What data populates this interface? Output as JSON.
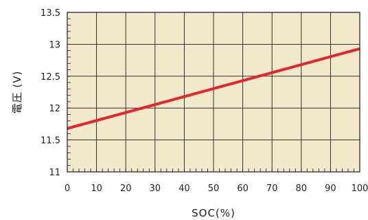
{
  "chart_data": {
    "type": "line",
    "xlabel": "SOC(%)",
    "ylabel": "電圧 (V)",
    "xlim": [
      0,
      100
    ],
    "ylim": [
      11,
      13.5
    ],
    "x_ticks": [
      0,
      10,
      20,
      30,
      40,
      50,
      60,
      70,
      80,
      90,
      100
    ],
    "y_ticks": [
      11,
      11.5,
      12,
      12.5,
      13,
      13.5
    ],
    "x_tick_labels": [
      "0",
      "10",
      "20",
      "30",
      "40",
      "50",
      "60",
      "70",
      "80",
      "90",
      "100"
    ],
    "y_tick_labels": [
      "11",
      "11.5",
      "12",
      "12.5",
      "13",
      "13.5"
    ],
    "grid": true,
    "series": [
      {
        "x": [
          0,
          100
        ],
        "y": [
          11.68,
          12.93
        ],
        "color": "#e3262b"
      }
    ],
    "colors": {
      "plot_background": "#f2e8cc",
      "grid": "#1a1a1a",
      "line": "#e3262b"
    }
  }
}
